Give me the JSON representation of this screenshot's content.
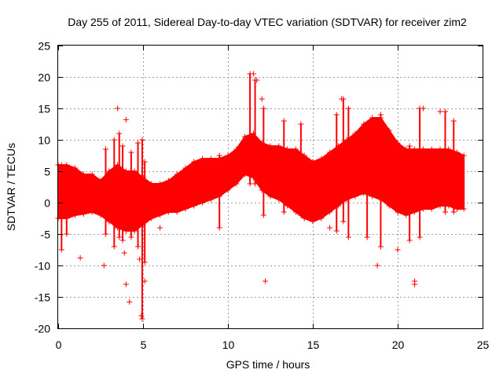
{
  "chart_data": {
    "type": "scatter",
    "title": "Day 255 of 2011, Sidereal Day-to-day VTEC variation (SDTVAR) for receiver zim2",
    "xlabel": "GPS time / hours",
    "ylabel": "SDTVAR / TECUs",
    "xlim": [
      0,
      25
    ],
    "ylim": [
      -20,
      25
    ],
    "xticks": [
      0,
      5,
      10,
      15,
      20,
      25
    ],
    "yticks": [
      -20,
      -15,
      -10,
      -5,
      0,
      5,
      10,
      15,
      20,
      25
    ],
    "grid": true,
    "marker": "+",
    "color": "#ff0000",
    "series": [
      {
        "name": "SDTVAR",
        "envelope": [
          {
            "x": 0.0,
            "lo": -2.5,
            "hi": 6.0
          },
          {
            "x": 0.5,
            "lo": -2.5,
            "hi": 6.0
          },
          {
            "x": 1.0,
            "lo": -2.0,
            "hi": 5.5
          },
          {
            "x": 1.5,
            "lo": -1.8,
            "hi": 4.5
          },
          {
            "x": 2.0,
            "lo": -1.5,
            "hi": 4.5
          },
          {
            "x": 2.5,
            "lo": -2.0,
            "hi": 3.5
          },
          {
            "x": 3.0,
            "lo": -3.0,
            "hi": 5.0
          },
          {
            "x": 3.5,
            "lo": -4.0,
            "hi": 6.0
          },
          {
            "x": 4.0,
            "lo": -4.5,
            "hi": 5.0
          },
          {
            "x": 4.5,
            "lo": -4.5,
            "hi": 5.0
          },
          {
            "x": 5.0,
            "lo": -3.5,
            "hi": 4.0
          },
          {
            "x": 5.5,
            "lo": -2.5,
            "hi": 3.0
          },
          {
            "x": 6.0,
            "lo": -2.0,
            "hi": 3.0
          },
          {
            "x": 6.5,
            "lo": -1.5,
            "hi": 3.5
          },
          {
            "x": 7.0,
            "lo": -1.5,
            "hi": 4.5
          },
          {
            "x": 7.5,
            "lo": -1.0,
            "hi": 5.5
          },
          {
            "x": 8.0,
            "lo": -0.5,
            "hi": 6.5
          },
          {
            "x": 8.5,
            "lo": 0.0,
            "hi": 7.0
          },
          {
            "x": 9.0,
            "lo": 0.5,
            "hi": 7.0
          },
          {
            "x": 9.5,
            "lo": 1.0,
            "hi": 7.0
          },
          {
            "x": 10.0,
            "lo": 2.0,
            "hi": 7.5
          },
          {
            "x": 10.5,
            "lo": 3.0,
            "hi": 8.5
          },
          {
            "x": 11.0,
            "lo": 4.5,
            "hi": 10.5
          },
          {
            "x": 11.5,
            "lo": 4.0,
            "hi": 11.0
          },
          {
            "x": 12.0,
            "lo": 2.0,
            "hi": 9.5
          },
          {
            "x": 12.5,
            "lo": 1.0,
            "hi": 9.0
          },
          {
            "x": 13.0,
            "lo": 0.5,
            "hi": 9.0
          },
          {
            "x": 13.5,
            "lo": -0.5,
            "hi": 8.5
          },
          {
            "x": 14.0,
            "lo": -1.5,
            "hi": 8.5
          },
          {
            "x": 14.5,
            "lo": -2.5,
            "hi": 7.5
          },
          {
            "x": 15.0,
            "lo": -3.0,
            "hi": 6.5
          },
          {
            "x": 15.5,
            "lo": -2.5,
            "hi": 7.0
          },
          {
            "x": 16.0,
            "lo": -1.5,
            "hi": 8.0
          },
          {
            "x": 16.5,
            "lo": -0.5,
            "hi": 9.0
          },
          {
            "x": 17.0,
            "lo": 0.5,
            "hi": 10.0
          },
          {
            "x": 17.5,
            "lo": 1.0,
            "hi": 11.0
          },
          {
            "x": 18.0,
            "lo": 1.5,
            "hi": 12.5
          },
          {
            "x": 18.5,
            "lo": 1.0,
            "hi": 13.5
          },
          {
            "x": 19.0,
            "lo": 0.5,
            "hi": 13.5
          },
          {
            "x": 19.5,
            "lo": -0.5,
            "hi": 11.5
          },
          {
            "x": 20.0,
            "lo": -1.5,
            "hi": 9.5
          },
          {
            "x": 20.5,
            "lo": -2.0,
            "hi": 8.5
          },
          {
            "x": 21.0,
            "lo": -1.5,
            "hi": 8.5
          },
          {
            "x": 21.5,
            "lo": -1.0,
            "hi": 8.5
          },
          {
            "x": 22.0,
            "lo": -1.0,
            "hi": 8.5
          },
          {
            "x": 22.5,
            "lo": -0.5,
            "hi": 8.5
          },
          {
            "x": 23.0,
            "lo": -0.5,
            "hi": 8.5
          },
          {
            "x": 23.5,
            "lo": -1.0,
            "hi": 8.0
          },
          {
            "x": 23.9,
            "lo": -1.0,
            "hi": 7.5
          }
        ],
        "spikes": [
          {
            "x": 0.2,
            "lo": -7.5,
            "hi": 6.0
          },
          {
            "x": 0.5,
            "lo": -5.0,
            "hi": 5.5
          },
          {
            "x": 2.8,
            "lo": -5.0,
            "hi": 8.5
          },
          {
            "x": 3.3,
            "lo": -7.0,
            "hi": 10.0
          },
          {
            "x": 3.6,
            "lo": -5.5,
            "hi": 11.0
          },
          {
            "x": 3.8,
            "lo": -6.0,
            "hi": 9.0
          },
          {
            "x": 4.3,
            "lo": -5.5,
            "hi": 8.0
          },
          {
            "x": 4.7,
            "lo": -7.0,
            "hi": 9.5
          },
          {
            "x": 4.95,
            "lo": -18.5,
            "hi": 10.0
          },
          {
            "x": 5.1,
            "lo": -9.5,
            "hi": 6.5
          },
          {
            "x": 9.5,
            "lo": -4.0,
            "hi": 7.5
          },
          {
            "x": 11.3,
            "lo": 3.0,
            "hi": 20.5
          },
          {
            "x": 11.6,
            "lo": 3.0,
            "hi": 19.5
          },
          {
            "x": 12.1,
            "lo": -2.0,
            "hi": 15.0
          },
          {
            "x": 13.3,
            "lo": -1.5,
            "hi": 13.0
          },
          {
            "x": 14.3,
            "lo": -2.0,
            "hi": 12.5
          },
          {
            "x": 16.4,
            "lo": -4.5,
            "hi": 14.0
          },
          {
            "x": 16.8,
            "lo": -3.0,
            "hi": 16.5
          },
          {
            "x": 17.1,
            "lo": -5.5,
            "hi": 15.0
          },
          {
            "x": 18.2,
            "lo": -5.5,
            "hi": 12.0
          },
          {
            "x": 19.0,
            "lo": -7.0,
            "hi": 14.0
          },
          {
            "x": 20.7,
            "lo": -6.0,
            "hi": 9.0
          },
          {
            "x": 21.3,
            "lo": -5.5,
            "hi": 15.0
          },
          {
            "x": 22.8,
            "lo": -1.5,
            "hi": 14.5
          },
          {
            "x": 23.3,
            "lo": -1.5,
            "hi": 13.0
          }
        ],
        "outliers": [
          {
            "x": 1.3,
            "y": -8.8
          },
          {
            "x": 2.7,
            "y": -10.0
          },
          {
            "x": 3.5,
            "y": 15.0
          },
          {
            "x": 3.9,
            "y": -8.0
          },
          {
            "x": 4.0,
            "y": 13.2
          },
          {
            "x": 4.0,
            "y": -13.0
          },
          {
            "x": 4.2,
            "y": -15.8
          },
          {
            "x": 4.8,
            "y": -9.0
          },
          {
            "x": 4.9,
            "y": -18.0
          },
          {
            "x": 5.1,
            "y": -12.5
          },
          {
            "x": 6.0,
            "y": -4.0
          },
          {
            "x": 11.5,
            "y": 20.5
          },
          {
            "x": 11.7,
            "y": 19.5
          },
          {
            "x": 12.2,
            "y": -12.5
          },
          {
            "x": 12.0,
            "y": 16.5
          },
          {
            "x": 16.0,
            "y": -4.0
          },
          {
            "x": 16.7,
            "y": 16.5
          },
          {
            "x": 18.8,
            "y": -10.0
          },
          {
            "x": 19.0,
            "y": -7.0
          },
          {
            "x": 20.0,
            "y": -7.5
          },
          {
            "x": 21.0,
            "y": -12.5
          },
          {
            "x": 21.0,
            "y": -13.0
          },
          {
            "x": 21.5,
            "y": 15.0
          },
          {
            "x": 22.5,
            "y": 14.5
          },
          {
            "x": 23.5,
            "y": -1.0
          }
        ]
      }
    ]
  }
}
